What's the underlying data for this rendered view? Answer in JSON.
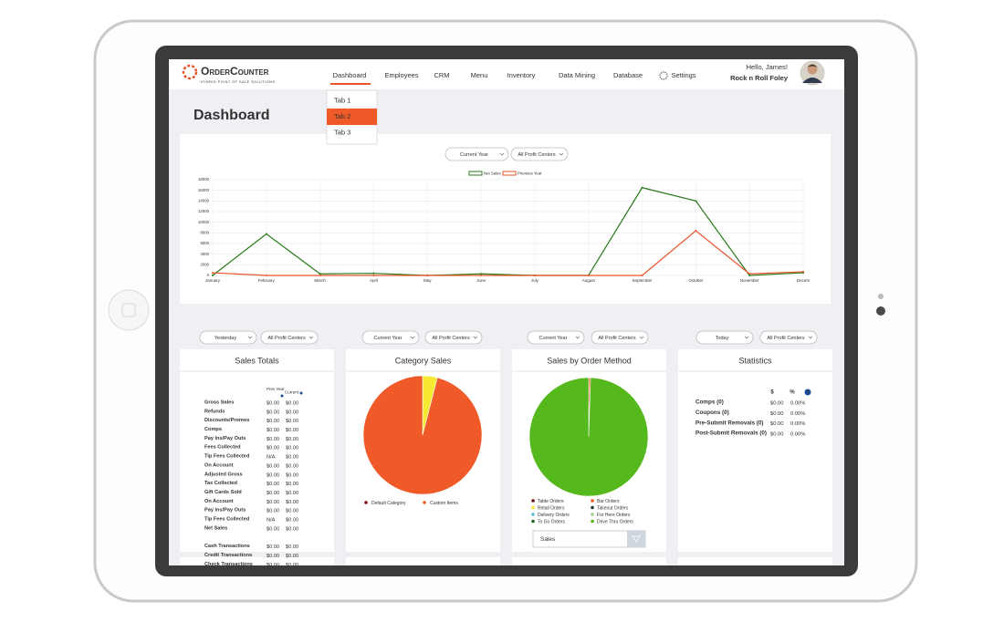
{
  "header": {
    "logo": "OrderCounter",
    "tagline": "HYBRID POINT OF SALE SOLUTIONS",
    "nav": [
      "Dashboard",
      "Employees",
      "CRM",
      "Menu",
      "Inventory",
      "Data Mining",
      "Database",
      "Settings"
    ],
    "greeting": "Hello, James!",
    "business": "Rock n Roll Foley"
  },
  "tab_menu": [
    "Tab 1",
    "Tab 2",
    "Tab 3"
  ],
  "page_title": "Dashboard",
  "sales_chart": {
    "type": "line",
    "filters": [
      "Current Year",
      "All Profit Centers"
    ],
    "categories": [
      "January",
      "February",
      "March",
      "April",
      "May",
      "June",
      "July",
      "August",
      "September",
      "October",
      "November",
      "Decem"
    ],
    "series": [
      {
        "name": "Net Sales",
        "color": "#2a7a1c",
        "values": [
          0,
          7800,
          300,
          400,
          0,
          300,
          0,
          0,
          16500,
          14000,
          0,
          500
        ]
      },
      {
        "name": "Previous Year",
        "color": "#e8532b",
        "values": [
          500,
          0,
          0,
          0,
          0,
          0,
          0,
          0,
          0,
          8400,
          300,
          700
        ]
      }
    ],
    "ylim": [
      0,
      18000
    ],
    "yticks": [
      0,
      2000,
      4000,
      6000,
      8000,
      10000,
      12000,
      14000,
      16000,
      18000
    ],
    "grid": true
  },
  "sales_totals": {
    "filters": [
      "Yesterday",
      "All Profit Centers"
    ],
    "title": "Sales Totals",
    "columns": [
      "Prev Year",
      "Current"
    ],
    "rows": [
      [
        "Gross Sales",
        "$0.00",
        "$0.00"
      ],
      [
        "Refunds",
        "$0.00",
        "$0.00"
      ],
      [
        "Discounts/Promos",
        "$0.00",
        "$0.00"
      ],
      [
        "Comps",
        "$0.00",
        "$0.00"
      ],
      [
        "Pay Ins/Pay Outs",
        "$0.00",
        "$0.00"
      ],
      [
        "Fees Collected",
        "$0.00",
        "$0.00"
      ],
      [
        "Tip Fees Collected",
        "N/A",
        "$0.00"
      ],
      [
        "On Account",
        "$0.00",
        "$0.00"
      ],
      [
        "Adjusted Gross",
        "$0.00",
        "$0.00"
      ],
      [
        "Tax Collected",
        "$0.00",
        "$0.00"
      ],
      [
        "Gift Cards Sold",
        "$0.00",
        "$0.00"
      ],
      [
        "On Account",
        "$0.00",
        "$0.00"
      ],
      [
        "Pay Ins/Pay Outs",
        "$0.00",
        "$0.00"
      ],
      [
        "Tip Fees Collected",
        "N/A",
        "$0.00"
      ],
      [
        "Net Sales",
        "$0.00",
        "$0.00"
      ],
      [
        "Cash Transactions",
        "$0.00",
        "$0.00"
      ],
      [
        "Credit Transactions",
        "$0.00",
        "$0.00"
      ],
      [
        "Check Transactions",
        "$0.00",
        "$0.00"
      ]
    ]
  },
  "category_sales": {
    "type": "pie",
    "filters": [
      "Current Year",
      "All Profit Centers"
    ],
    "title": "Category Sales",
    "slices": [
      {
        "value": 4,
        "color": "#f7e830"
      },
      {
        "value": 96,
        "color": "#f05a28"
      }
    ],
    "legend": [
      {
        "name": "Default Category",
        "color": "#7a1010"
      },
      {
        "name": "Custom Items",
        "color": "#f05a28"
      }
    ]
  },
  "order_method_sales": {
    "type": "pie",
    "filters": [
      "Current Year",
      "All Profit Centers"
    ],
    "title": "Sales by Order Method",
    "slices": [
      {
        "value": 0.5,
        "color": "#f05a28"
      },
      {
        "value": 99.5,
        "color": "#55b81c"
      }
    ],
    "legend": [
      {
        "name": "Table Orders",
        "color": "#7a1010"
      },
      {
        "name": "Bar Orders",
        "color": "#f05a28"
      },
      {
        "name": "Retail Orders",
        "color": "#f7e830"
      },
      {
        "name": "Takeout Orders",
        "color": "#1f3a2a"
      },
      {
        "name": "Delivery Orders",
        "color": "#5bc0de"
      },
      {
        "name": "For Here Orders",
        "color": "#9ad08a"
      },
      {
        "name": "To Go Orders",
        "color": "#1d6b2a"
      },
      {
        "name": "Drive Thru Orders",
        "color": "#55b81c"
      }
    ],
    "selector": "Sales"
  },
  "statistics": {
    "filters": [
      "Today",
      "All Profit Centers"
    ],
    "title": "Statistics",
    "columns": [
      "$",
      "%"
    ],
    "help": "?",
    "rows": [
      [
        "Comps (0)",
        "$0.00",
        "0.00%"
      ],
      [
        "Coupons (0)",
        "$0.00",
        "0.00%"
      ],
      [
        "Pre-Submit Removals (0)",
        "$0.00",
        "0.00%"
      ],
      [
        "Post-Submit Removals (0)",
        "$0.00",
        "0.00%"
      ]
    ]
  }
}
